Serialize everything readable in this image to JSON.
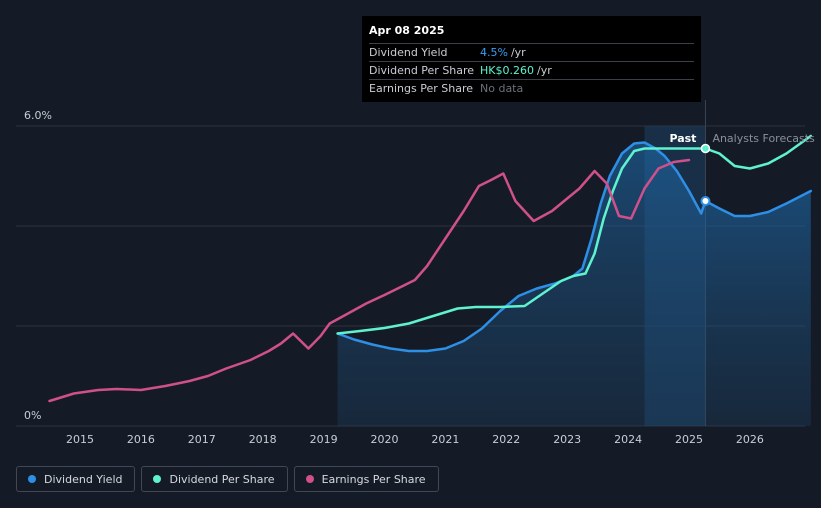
{
  "tooltip": {
    "date": "Apr 08 2025",
    "rows": [
      {
        "label": "Dividend Yield",
        "value": "4.5%",
        "unit": "/yr"
      },
      {
        "label": "Dividend Per Share",
        "value": "HK$0.260",
        "unit": "/yr"
      },
      {
        "label": "Earnings Per Share",
        "value": "No data",
        "unit": ""
      }
    ]
  },
  "legend": [
    {
      "label": "Dividend Yield",
      "color": "#2e8fe6"
    },
    {
      "label": "Dividend Per Share",
      "color": "#5ff2cf"
    },
    {
      "label": "Earnings Per Share",
      "color": "#d0508c"
    }
  ],
  "colors": {
    "background": "#151b26",
    "dividend_yield": "#2e8fe6",
    "dividend_per_share": "#5ff2cf",
    "earnings_per_share": "#d0508c",
    "grid": "#2b313d",
    "axis_text": "#c9cdd4"
  },
  "chart_data": {
    "type": "line",
    "y_tick_labels": [
      {
        "value": 6.0,
        "label": "6.0%"
      },
      {
        "value": 0,
        "label": "0%"
      }
    ],
    "ylim": [
      0,
      6.0
    ],
    "xlim": [
      2014.5,
      2027.0
    ],
    "x_ticks": [
      2015,
      2016,
      2017,
      2018,
      2019,
      2020,
      2021,
      2022,
      2023,
      2024,
      2025,
      2026
    ],
    "divider_x": 2025.27,
    "forecast_shade_start": 2024.27,
    "past_label": "Past",
    "forecast_label": "Analysts Forecasts",
    "grid": true,
    "legend_position": "bottom-left",
    "series": [
      {
        "name": "Dividend Yield",
        "key": "dividend_yield",
        "area": true,
        "x": [
          2019.23,
          2019.5,
          2019.8,
          2020.1,
          2020.4,
          2020.7,
          2021.0,
          2021.3,
          2021.6,
          2021.9,
          2022.2,
          2022.5,
          2022.8,
          2023.1,
          2023.25,
          2023.4,
          2023.55,
          2023.7,
          2023.9,
          2024.1,
          2024.27,
          2024.45,
          2024.6,
          2024.8,
          2025.0,
          2025.2,
          2025.27
        ],
        "y": [
          1.85,
          1.73,
          1.63,
          1.55,
          1.5,
          1.5,
          1.55,
          1.7,
          1.95,
          2.3,
          2.6,
          2.75,
          2.85,
          3.0,
          3.15,
          3.75,
          4.45,
          5.0,
          5.45,
          5.65,
          5.67,
          5.55,
          5.4,
          5.1,
          4.7,
          4.25,
          4.5
        ]
      },
      {
        "name": "Dividend Yield (forecast)",
        "key": "dividend_yield",
        "area": true,
        "x": [
          2025.27,
          2025.5,
          2025.75,
          2026.0,
          2026.3,
          2026.6,
          2027.0
        ],
        "y": [
          4.5,
          4.35,
          4.2,
          4.2,
          4.28,
          4.45,
          4.7
        ]
      },
      {
        "name": "Dividend Per Share",
        "key": "dividend_per_share",
        "x": [
          2019.23,
          2019.6,
          2020.0,
          2020.4,
          2020.8,
          2021.2,
          2021.5,
          2021.9,
          2022.3,
          2022.6,
          2022.9,
          2023.1,
          2023.3,
          2023.45,
          2023.6,
          2023.75,
          2023.9,
          2024.1,
          2024.27,
          2024.6,
          2025.0,
          2025.27
        ],
        "y": [
          1.85,
          1.9,
          1.96,
          2.05,
          2.2,
          2.35,
          2.38,
          2.38,
          2.4,
          2.65,
          2.9,
          3.0,
          3.05,
          3.45,
          4.15,
          4.7,
          5.15,
          5.5,
          5.55,
          5.55,
          5.55,
          5.55
        ]
      },
      {
        "name": "Dividend Per Share (forecast)",
        "key": "dividend_per_share",
        "x": [
          2025.27,
          2025.5,
          2025.75,
          2026.0,
          2026.3,
          2026.6,
          2027.0
        ],
        "y": [
          5.55,
          5.45,
          5.2,
          5.15,
          5.25,
          5.45,
          5.8
        ]
      },
      {
        "name": "Earnings Per Share",
        "key": "earnings_per_share",
        "x": [
          2014.5,
          2014.9,
          2015.3,
          2015.6,
          2016.0,
          2016.4,
          2016.8,
          2017.1,
          2017.4,
          2017.8,
          2018.1,
          2018.3,
          2018.5,
          2018.75,
          2018.95,
          2019.1,
          2019.4,
          2019.7,
          2020.0,
          2020.3,
          2020.5,
          2020.7,
          2021.0,
          2021.3,
          2021.55,
          2021.75,
          2021.95,
          2022.15,
          2022.45,
          2022.75,
          2023.0,
          2023.2,
          2023.45,
          2023.65,
          2023.85,
          2024.05,
          2024.27,
          2024.5,
          2024.75,
          2025.0
        ],
        "y": [
          0.5,
          0.65,
          0.72,
          0.74,
          0.72,
          0.8,
          0.9,
          1.0,
          1.15,
          1.32,
          1.5,
          1.65,
          1.85,
          1.55,
          1.8,
          2.05,
          2.25,
          2.45,
          2.62,
          2.8,
          2.92,
          3.2,
          3.75,
          4.3,
          4.8,
          4.92,
          5.05,
          4.5,
          4.1,
          4.3,
          4.55,
          4.75,
          5.1,
          4.85,
          4.2,
          4.15,
          4.75,
          5.15,
          5.28,
          5.32
        ]
      }
    ]
  }
}
